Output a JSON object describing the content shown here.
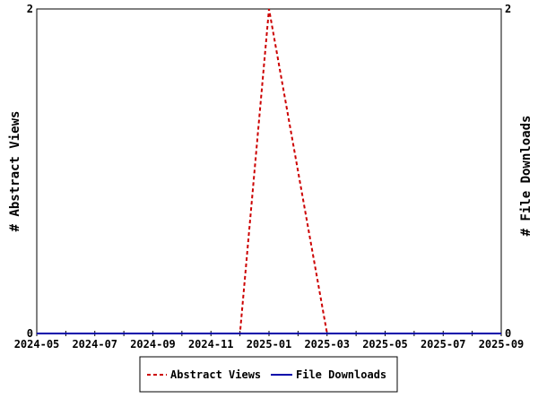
{
  "chart_data": {
    "type": "line",
    "x": [
      "2024-05",
      "2024-06",
      "2024-07",
      "2024-08",
      "2024-09",
      "2024-10",
      "2024-11",
      "2024-12",
      "2025-01",
      "2025-02",
      "2025-03",
      "2025-04",
      "2025-05",
      "2025-06",
      "2025-07",
      "2025-08",
      "2025-09"
    ],
    "x_tick_labels": [
      "2024-05",
      "2024-07",
      "2024-09",
      "2024-11",
      "2025-01",
      "2025-03",
      "2025-05",
      "2025-07",
      "2025-09"
    ],
    "ylabel_left": "# Abstract Views",
    "ylabel_right": "# File Downloads",
    "ylim_left": [
      0,
      2
    ],
    "ylim_right": [
      0,
      2
    ],
    "y_tick_labels_left": [
      "0",
      "2"
    ],
    "y_tick_labels_right": [
      "0",
      "2"
    ],
    "grid": false,
    "legend_placement": "bottom",
    "series": [
      {
        "name": "Abstract Views",
        "axis": "left",
        "color": "#cc0000",
        "style": "dashed",
        "values": [
          0,
          0,
          0,
          0,
          0,
          0,
          0,
          0,
          2,
          1,
          0,
          0,
          0,
          0,
          0,
          0,
          0
        ]
      },
      {
        "name": "File Downloads",
        "axis": "right",
        "color": "#0000aa",
        "style": "solid",
        "values": [
          0,
          0,
          0,
          0,
          0,
          0,
          0,
          0,
          0,
          0,
          0,
          0,
          0,
          0,
          0,
          0,
          0
        ]
      }
    ]
  }
}
